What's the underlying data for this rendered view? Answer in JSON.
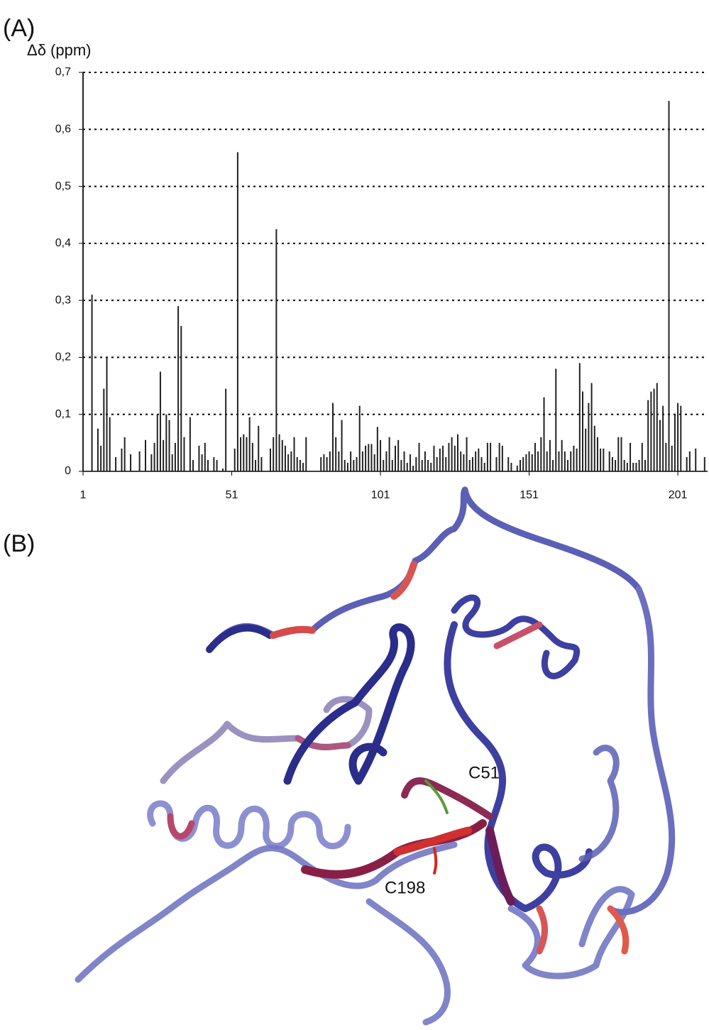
{
  "panel_labels": [
    "(A)",
    "(B)"
  ],
  "chart_data": {
    "type": "bar",
    "ylabel": "Δδ (ppm)",
    "color": "#222222",
    "grid": true,
    "xlim": [
      1,
      211
    ],
    "xticks": [
      1,
      51,
      101,
      151,
      201
    ],
    "ylim": [
      0,
      0.7
    ],
    "yticks": [
      0,
      {
        "value": 0.1,
        "label": "0,1"
      },
      {
        "value": 0.2,
        "label": "0,2"
      },
      {
        "value": 0.3,
        "label": "0,3"
      },
      {
        "value": 0.4,
        "label": "0,4"
      },
      {
        "value": 0.5,
        "label": "0,5"
      },
      {
        "value": 0.6,
        "label": "0,6"
      },
      {
        "value": 0.7,
        "label": "0,7"
      }
    ],
    "x": [
      1,
      2,
      3,
      4,
      5,
      6,
      7,
      8,
      9,
      10,
      11,
      12,
      13,
      14,
      15,
      16,
      17,
      18,
      19,
      20,
      21,
      22,
      23,
      24,
      25,
      26,
      27,
      28,
      29,
      30,
      31,
      32,
      33,
      34,
      35,
      36,
      37,
      38,
      39,
      40,
      41,
      42,
      43,
      44,
      45,
      46,
      47,
      48,
      49,
      50,
      51,
      52,
      53,
      54,
      55,
      56,
      57,
      58,
      59,
      60,
      61,
      62,
      63,
      64,
      65,
      66,
      67,
      68,
      69,
      70,
      71,
      72,
      73,
      74,
      75,
      76,
      77,
      78,
      79,
      80,
      81,
      82,
      83,
      84,
      85,
      86,
      87,
      88,
      89,
      90,
      91,
      92,
      93,
      94,
      95,
      96,
      97,
      98,
      99,
      100,
      101,
      102,
      103,
      104,
      105,
      106,
      107,
      108,
      109,
      110,
      111,
      112,
      113,
      114,
      115,
      116,
      117,
      118,
      119,
      120,
      121,
      122,
      123,
      124,
      125,
      126,
      127,
      128,
      129,
      130,
      131,
      132,
      133,
      134,
      135,
      136,
      137,
      138,
      139,
      140,
      141,
      142,
      143,
      144,
      145,
      146,
      147,
      148,
      149,
      150,
      151,
      152,
      153,
      154,
      155,
      156,
      157,
      158,
      159,
      160,
      161,
      162,
      163,
      164,
      165,
      166,
      167,
      168,
      169,
      170,
      171,
      172,
      173,
      174,
      175,
      176,
      177,
      178,
      179,
      180,
      181,
      182,
      183,
      184,
      185,
      186,
      187,
      188,
      189,
      190,
      191,
      192,
      193,
      194,
      195,
      196,
      197,
      198,
      199,
      200,
      201,
      202,
      203,
      204,
      205,
      206,
      207,
      208,
      209,
      210
    ],
    "values": [
      0.7,
      0,
      0,
      0.31,
      0,
      0.075,
      0.045,
      0.145,
      0.2,
      0.095,
      0,
      0.025,
      0,
      0.04,
      0.06,
      0,
      0.03,
      0,
      0,
      0.035,
      0,
      0.055,
      0,
      0.03,
      0.05,
      0.1,
      0.175,
      0.055,
      0.1,
      0.09,
      0.03,
      0.05,
      0.29,
      0.255,
      0.06,
      0,
      0.095,
      0.02,
      0,
      0.045,
      0.03,
      0.05,
      0.02,
      0,
      0.025,
      0.02,
      0,
      0.005,
      0.145,
      0,
      0,
      0.04,
      0.56,
      0.06,
      0.065,
      0.06,
      0.095,
      0.05,
      0.02,
      0.08,
      0.025,
      0,
      0,
      0.04,
      0.06,
      0.425,
      0.065,
      0.055,
      0.045,
      0.03,
      0.035,
      0.06,
      0.025,
      0.02,
      0.015,
      0.06,
      0,
      0,
      0,
      0,
      0.025,
      0.03,
      0.025,
      0.035,
      0.12,
      0.06,
      0.035,
      0.09,
      0.02,
      0.015,
      0.035,
      0.02,
      0.025,
      0.115,
      0.035,
      0.045,
      0.048,
      0.048,
      0.03,
      0.078,
      0.055,
      0.02,
      0.035,
      0.06,
      0.02,
      0.045,
      0.055,
      0.02,
      0.035,
      0.015,
      0.03,
      0.01,
      0.025,
      0.05,
      0.02,
      0.035,
      0.02,
      0.015,
      0.045,
      0.025,
      0.04,
      0.045,
      0.025,
      0.05,
      0.06,
      0.045,
      0.065,
      0.035,
      0.03,
      0.06,
      0.02,
      0.025,
      0.035,
      0.04,
      0.025,
      0.015,
      0.05,
      0.05,
      0,
      0.025,
      0.05,
      0.045,
      0,
      0.025,
      0.015,
      0,
      0.01,
      0.02,
      0.025,
      0.03,
      0.035,
      0.03,
      0.05,
      0.035,
      0.06,
      0.13,
      0.035,
      0.055,
      0.02,
      0.18,
      0.035,
      0.055,
      0.035,
      0.02,
      0.035,
      0.045,
      0.04,
      0.19,
      0.14,
      0.075,
      0.12,
      0.155,
      0.08,
      0.06,
      0.04,
      0.04,
      0,
      0.035,
      0.025,
      0.02,
      0.06,
      0.06,
      0.02,
      0.015,
      0.05,
      0.015,
      0.015,
      0.02,
      0.05,
      0.02,
      0.125,
      0.14,
      0.145,
      0.155,
      0.09,
      0.115,
      0.05,
      0.65,
      0.045,
      0.1,
      0.12,
      0.115,
      0,
      0.025,
      0.035,
      0,
      0.04,
      0,
      0,
      0.025
    ]
  },
  "structure": {
    "labels": [
      "C51",
      "C198"
    ]
  }
}
